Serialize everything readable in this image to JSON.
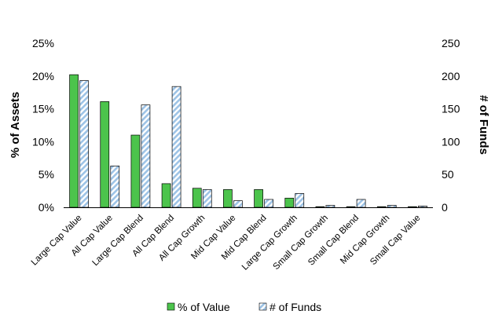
{
  "chart_data": {
    "type": "bar",
    "title": "",
    "categories": [
      "Large Cap Value",
      "All Cap Value",
      "Large Cap Blend",
      "All Cap Blend",
      "All Cap Growth",
      "Mid Cap Value",
      "Mid Cap Blend",
      "Large Cap Growth",
      "Small Cap Growth",
      "Small Cap Blend",
      "Mid Cap Growth",
      "Small Cap Value"
    ],
    "series": [
      {
        "name": "% of Value",
        "axis": "left",
        "color": "#4CC44C",
        "values": [
          20.2,
          16.1,
          11.0,
          3.6,
          2.9,
          2.7,
          2.7,
          1.4,
          0.1,
          0.1,
          0.1,
          0.1
        ]
      },
      {
        "name": "# of Funds",
        "axis": "right",
        "color": "#9DC3E6",
        "pattern": "diagonal-hatch",
        "values": [
          193,
          63,
          156,
          184,
          27,
          10,
          12,
          21,
          3,
          12,
          3,
          2
        ]
      }
    ],
    "ylabel": "% of Assets",
    "y2label": "# of Funds",
    "ylim": [
      0,
      25
    ],
    "y2lim": [
      0,
      250
    ],
    "yticks": [
      "0%",
      "5%",
      "10%",
      "15%",
      "20%",
      "25%"
    ],
    "y2ticks": [
      "0",
      "50",
      "100",
      "150",
      "200",
      "250"
    ],
    "grid": false,
    "legend": "bottom"
  }
}
